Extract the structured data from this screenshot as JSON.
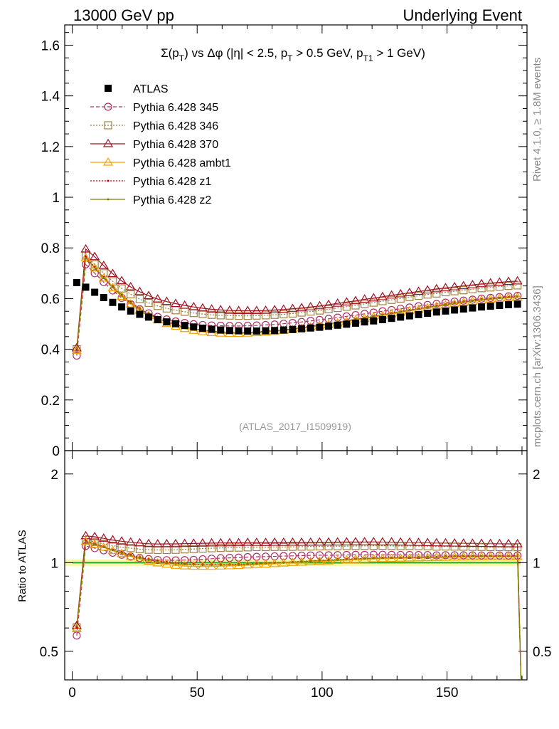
{
  "header": {
    "left": "13000 GeV pp",
    "right": "Underlying Event"
  },
  "side_labels": {
    "top": "Rivet 4.1.0, ≥ 1.8M events",
    "bottom": "mcplots.cern.ch [arXiv:1306.3436]"
  },
  "main": {
    "title_prefix": "Σ(p",
    "title_sub1": "T",
    "title_mid1": ") vs Δφ (|η| < 2.5, p",
    "title_sub2": "T",
    "title_mid2": " > 0.5 GeV, p",
    "title_sub3": "T1",
    "title_suffix": " > 1 GeV)",
    "watermark": "(ATLAS_2017_I1509919)"
  },
  "ratio": {
    "ylabel": "Ratio to ATLAS"
  },
  "chart_data": {
    "type": "scatter",
    "x": [
      1.8,
      5.4,
      9.0,
      12.6,
      16.2,
      19.8,
      23.4,
      27.0,
      30.6,
      34.2,
      37.8,
      41.4,
      45.0,
      48.6,
      52.2,
      55.8,
      59.4,
      63.0,
      66.6,
      70.2,
      73.8,
      77.4,
      81.0,
      84.6,
      88.2,
      91.8,
      95.4,
      99.0,
      102.6,
      106.2,
      109.8,
      113.4,
      117.0,
      120.6,
      124.2,
      127.8,
      131.4,
      135.0,
      138.6,
      142.2,
      145.8,
      149.4,
      153.0,
      156.6,
      160.2,
      163.8,
      167.4,
      171.0,
      174.6,
      178.2
    ],
    "xlim": [
      -3,
      182
    ],
    "xticks": [
      0,
      50,
      100,
      150
    ],
    "xtick_labels": [
      "0",
      "50",
      "100",
      "150"
    ],
    "main_ylim": [
      0,
      1.68
    ],
    "main_yticks": [
      0,
      0.2,
      0.4,
      0.6,
      0.8,
      1,
      1.2,
      1.4,
      1.6
    ],
    "main_ytick_labels": [
      "0",
      "0.2",
      "0.4",
      "0.6",
      "0.8",
      "1",
      "1.2",
      "1.4",
      "1.6"
    ],
    "ratio_ylim": [
      0.4,
      2.4
    ],
    "ratio_yticks": [
      0.5,
      1,
      2
    ],
    "ratio_ytick_labels": [
      "0.5",
      "1",
      "2"
    ],
    "series": [
      {
        "name": "ATLAS",
        "color": "#000000",
        "marker": "filled-square",
        "dash": "none",
        "values": [
          0.663,
          0.645,
          0.625,
          0.604,
          0.585,
          0.567,
          0.551,
          0.538,
          0.527,
          0.517,
          0.508,
          0.501,
          0.494,
          0.488,
          0.483,
          0.479,
          0.476,
          0.474,
          0.473,
          0.472,
          0.472,
          0.473,
          0.474,
          0.476,
          0.478,
          0.481,
          0.484,
          0.487,
          0.491,
          0.495,
          0.499,
          0.503,
          0.508,
          0.512,
          0.517,
          0.522,
          0.527,
          0.532,
          0.537,
          0.542,
          0.547,
          0.551,
          0.555,
          0.559,
          0.563,
          0.567,
          0.57,
          0.573,
          0.576,
          0.578
        ]
      },
      {
        "name": "Pythia 6.428 345",
        "color": "#b03060",
        "marker": "open-circle",
        "dash": "5,3",
        "values": [
          0.375,
          0.735,
          0.7,
          0.665,
          0.632,
          0.603,
          0.578,
          0.558,
          0.542,
          0.528,
          0.518,
          0.51,
          0.504,
          0.499,
          0.496,
          0.494,
          0.493,
          0.492,
          0.492,
          0.493,
          0.494,
          0.496,
          0.498,
          0.501,
          0.504,
          0.508,
          0.512,
          0.516,
          0.52,
          0.525,
          0.53,
          0.535,
          0.54,
          0.545,
          0.55,
          0.555,
          0.56,
          0.565,
          0.57,
          0.575,
          0.579,
          0.584,
          0.588,
          0.592,
          0.596,
          0.6,
          0.603,
          0.606,
          0.609,
          0.611
        ]
      },
      {
        "name": "Pythia 6.428 346",
        "color": "#a08040",
        "marker": "open-square",
        "dash": "2,2",
        "values": [
          0.4,
          0.77,
          0.735,
          0.7,
          0.668,
          0.64,
          0.617,
          0.598,
          0.583,
          0.571,
          0.561,
          0.554,
          0.548,
          0.543,
          0.539,
          0.536,
          0.534,
          0.533,
          0.532,
          0.532,
          0.533,
          0.534,
          0.536,
          0.538,
          0.541,
          0.545,
          0.549,
          0.553,
          0.558,
          0.563,
          0.568,
          0.573,
          0.579,
          0.584,
          0.59,
          0.595,
          0.6,
          0.606,
          0.611,
          0.616,
          0.62,
          0.625,
          0.629,
          0.633,
          0.637,
          0.641,
          0.644,
          0.647,
          0.65,
          0.652
        ]
      },
      {
        "name": "Pythia 6.428 370",
        "color": "#a01020",
        "marker": "open-triangle",
        "dash": "none",
        "values": [
          0.405,
          0.795,
          0.765,
          0.73,
          0.698,
          0.67,
          0.646,
          0.627,
          0.611,
          0.598,
          0.588,
          0.58,
          0.573,
          0.567,
          0.562,
          0.558,
          0.555,
          0.553,
          0.552,
          0.552,
          0.552,
          0.553,
          0.555,
          0.557,
          0.56,
          0.563,
          0.567,
          0.571,
          0.576,
          0.581,
          0.586,
          0.591,
          0.597,
          0.602,
          0.607,
          0.613,
          0.618,
          0.623,
          0.628,
          0.633,
          0.638,
          0.642,
          0.646,
          0.65,
          0.654,
          0.658,
          0.661,
          0.664,
          0.667,
          0.669
        ]
      },
      {
        "name": "Pythia 6.428 ambt1",
        "color": "#f0a000",
        "marker": "open-triangle",
        "dash": "none",
        "values": [
          0.395,
          0.76,
          0.72,
          0.68,
          0.642,
          0.608,
          0.578,
          0.553,
          0.532,
          0.515,
          0.501,
          0.49,
          0.481,
          0.474,
          0.469,
          0.465,
          0.463,
          0.462,
          0.462,
          0.463,
          0.465,
          0.467,
          0.47,
          0.474,
          0.478,
          0.482,
          0.487,
          0.492,
          0.497,
          0.503,
          0.509,
          0.515,
          0.521,
          0.527,
          0.533,
          0.539,
          0.545,
          0.551,
          0.557,
          0.563,
          0.569,
          0.574,
          0.579,
          0.584,
          0.589,
          0.593,
          0.597,
          0.6,
          0.603,
          0.605
        ]
      },
      {
        "name": "Pythia 6.428 z1",
        "color": "#cc0000",
        "marker": "dot",
        "dash": "2,2",
        "values": [
          0.4,
          0.765,
          0.725,
          0.685,
          0.648,
          0.615,
          0.586,
          0.561,
          0.541,
          0.524,
          0.51,
          0.498,
          0.489,
          0.482,
          0.476,
          0.472,
          0.469,
          0.467,
          0.467,
          0.467,
          0.469,
          0.471,
          0.474,
          0.477,
          0.481,
          0.486,
          0.491,
          0.496,
          0.501,
          0.507,
          0.513,
          0.519,
          0.525,
          0.531,
          0.537,
          0.543,
          0.549,
          0.555,
          0.561,
          0.567,
          0.572,
          0.578,
          0.583,
          0.588,
          0.592,
          0.596,
          0.6,
          0.603,
          0.606,
          0.608
        ]
      },
      {
        "name": "Pythia 6.428 z2",
        "color": "#808000",
        "marker": "dot",
        "dash": "none",
        "values": [
          0.405,
          0.76,
          0.722,
          0.682,
          0.645,
          0.612,
          0.583,
          0.558,
          0.538,
          0.521,
          0.507,
          0.496,
          0.487,
          0.48,
          0.474,
          0.47,
          0.467,
          0.466,
          0.465,
          0.466,
          0.467,
          0.47,
          0.473,
          0.476,
          0.48,
          0.485,
          0.49,
          0.495,
          0.5,
          0.506,
          0.512,
          0.518,
          0.524,
          0.53,
          0.536,
          0.542,
          0.548,
          0.554,
          0.56,
          0.566,
          0.571,
          0.577,
          0.582,
          0.587,
          0.591,
          0.595,
          0.599,
          0.602,
          0.605,
          0.607
        ]
      }
    ]
  }
}
